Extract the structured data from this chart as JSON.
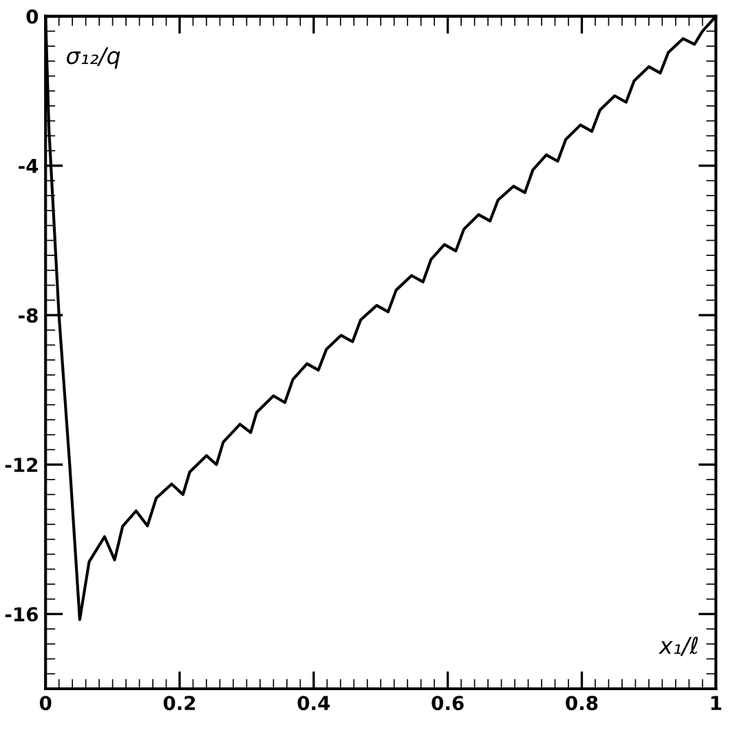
{
  "chart_data": {
    "type": "line",
    "xlabel": "x₁/ℓ",
    "ylabel": "σ₁₂/q",
    "xlim": [
      0,
      1
    ],
    "xticks": [
      0,
      0.2,
      0.4,
      0.6,
      0.8,
      1
    ],
    "ylim": [
      -18,
      0
    ],
    "yticks": [
      0,
      -4,
      -8,
      -12,
      -16
    ],
    "grid": false,
    "legend": false,
    "marker": "none",
    "line_style": "solid",
    "series": [
      {
        "color": "#000000",
        "x": [
          0,
          0.005,
          0.02,
          0.036,
          0.051,
          0.065,
          0.088,
          0.103,
          0.115,
          0.135,
          0.152,
          0.165,
          0.188,
          0.205,
          0.215,
          0.24,
          0.255,
          0.265,
          0.29,
          0.306,
          0.315,
          0.34,
          0.357,
          0.369,
          0.39,
          0.407,
          0.419,
          0.441,
          0.458,
          0.47,
          0.494,
          0.511,
          0.523,
          0.546,
          0.563,
          0.575,
          0.595,
          0.612,
          0.624,
          0.646,
          0.663,
          0.675,
          0.698,
          0.715,
          0.727,
          0.747,
          0.764,
          0.776,
          0.798,
          0.815,
          0.827,
          0.849,
          0.866,
          0.878,
          0.9,
          0.917,
          0.929,
          0.951,
          0.968,
          0.98,
          1
        ],
        "values": [
          0,
          -3,
          -8,
          -12,
          -16.15,
          -14.6,
          -13.93,
          -14.55,
          -13.65,
          -13.24,
          -13.64,
          -12.9,
          -12.52,
          -12.8,
          -12.2,
          -11.76,
          -12.0,
          -11.4,
          -10.92,
          -11.14,
          -10.6,
          -10.16,
          -10.34,
          -9.72,
          -9.3,
          -9.47,
          -8.91,
          -8.54,
          -8.71,
          -8.13,
          -7.74,
          -7.91,
          -7.33,
          -6.94,
          -7.11,
          -6.51,
          -6.11,
          -6.28,
          -5.7,
          -5.31,
          -5.48,
          -4.92,
          -4.55,
          -4.72,
          -4.11,
          -3.71,
          -3.88,
          -3.3,
          -2.91,
          -3.08,
          -2.51,
          -2.13,
          -2.3,
          -1.73,
          -1.35,
          -1.52,
          -0.97,
          -0.6,
          -0.75,
          -0.4,
          0
        ]
      }
    ]
  }
}
